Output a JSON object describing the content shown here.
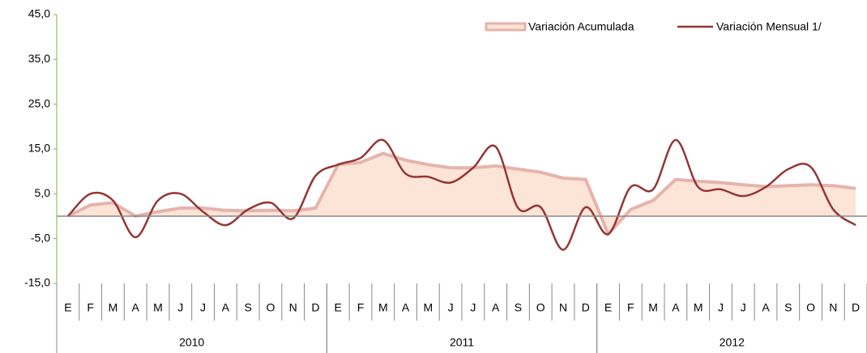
{
  "chart_data": {
    "type": "line",
    "categories": [
      "E",
      "F",
      "M",
      "A",
      "M",
      "J",
      "J",
      "A",
      "S",
      "O",
      "N",
      "D",
      "E",
      "F",
      "M",
      "A",
      "M",
      "J",
      "J",
      "A",
      "S",
      "O",
      "N",
      "D",
      "E",
      "F",
      "M",
      "A",
      "M",
      "J",
      "J",
      "A",
      "S",
      "O",
      "N",
      "D"
    ],
    "years": [
      "2010",
      "2011",
      "2012"
    ],
    "series": [
      {
        "name": "Variación Acumulada",
        "kind": "area",
        "color": "#fce4d6",
        "edge": "#e6b3ad",
        "values": [
          0,
          2.5,
          3,
          0,
          1,
          1.8,
          1.8,
          1.3,
          1.2,
          1.3,
          1.2,
          1.8,
          11.5,
          12,
          14,
          12.5,
          11.5,
          10.8,
          10.8,
          11.2,
          10.5,
          9.8,
          8.5,
          8.2,
          -4,
          1.5,
          3.5,
          8.2,
          7.8,
          7.5,
          7,
          6.6,
          6.8,
          7,
          6.8,
          6.2
        ]
      },
      {
        "name": "Variación Mensual 1/",
        "kind": "line",
        "color": "#943634",
        "values": [
          0,
          5,
          3.5,
          -4.7,
          3.5,
          5,
          1,
          -2,
          1.5,
          3,
          -0.5,
          9,
          11.5,
          13,
          17,
          9.5,
          8.8,
          7.5,
          10.8,
          15.5,
          1.8,
          2,
          -7.5,
          2,
          -4,
          6.5,
          6,
          17,
          6.5,
          6,
          4.5,
          6.5,
          10.5,
          11,
          1.5,
          -2
        ]
      }
    ],
    "ylim": [
      -15,
      45
    ],
    "yticks": [
      {
        "value": -15,
        "label": "-15,0"
      },
      {
        "value": -5,
        "label": "-5,0"
      },
      {
        "value": 5,
        "label": "5,0"
      },
      {
        "value": 15,
        "label": "15,0"
      },
      {
        "value": 25,
        "label": "25,0"
      },
      {
        "value": 35,
        "label": "35,0"
      },
      {
        "value": 45,
        "label": "45,0"
      }
    ],
    "legend": "top-right"
  }
}
